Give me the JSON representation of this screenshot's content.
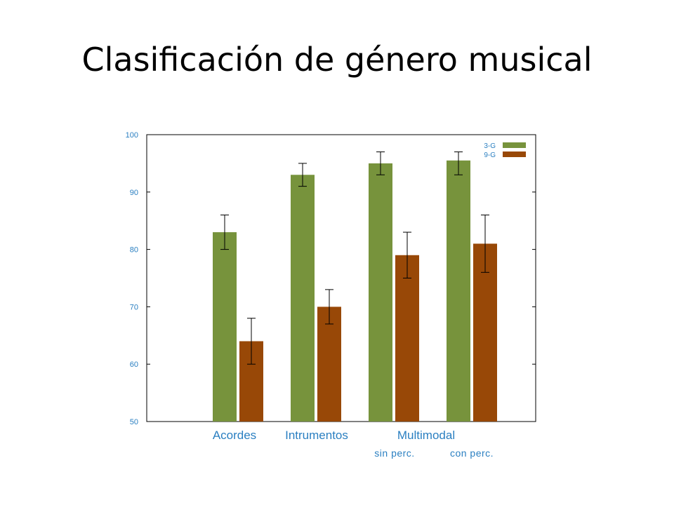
{
  "slide": {
    "title": "Clasificación de género musical"
  },
  "chart_data": {
    "type": "bar",
    "categories": [
      "Acordes",
      "Intrumentos",
      "Multimodal sin perc.",
      "Multimodal con perc."
    ],
    "category_labels": {
      "main": [
        {
          "text": "Acordes",
          "group": "acordes"
        },
        {
          "text": "Intrumentos",
          "group": "intrumentos"
        },
        {
          "text": "Multimodal",
          "group": "multimodal"
        }
      ],
      "sub": [
        "sin perc.",
        "con perc."
      ]
    },
    "series": [
      {
        "name": "3-G",
        "color": "#77933c",
        "values": [
          83,
          93,
          95,
          95.5
        ],
        "err_low": [
          80,
          91,
          93,
          93
        ],
        "err_high": [
          86,
          95,
          97,
          97
        ]
      },
      {
        "name": "9-G",
        "color": "#984807",
        "values": [
          64,
          70,
          79,
          81
        ],
        "err_low": [
          60,
          67,
          75,
          76
        ],
        "err_high": [
          68,
          73,
          83,
          86
        ]
      }
    ],
    "yaxis": {
      "min": 50,
      "max": 100,
      "ticks": [
        50,
        60,
        70,
        80,
        90,
        100
      ]
    },
    "legend_placement": "top-right",
    "grid": false
  }
}
